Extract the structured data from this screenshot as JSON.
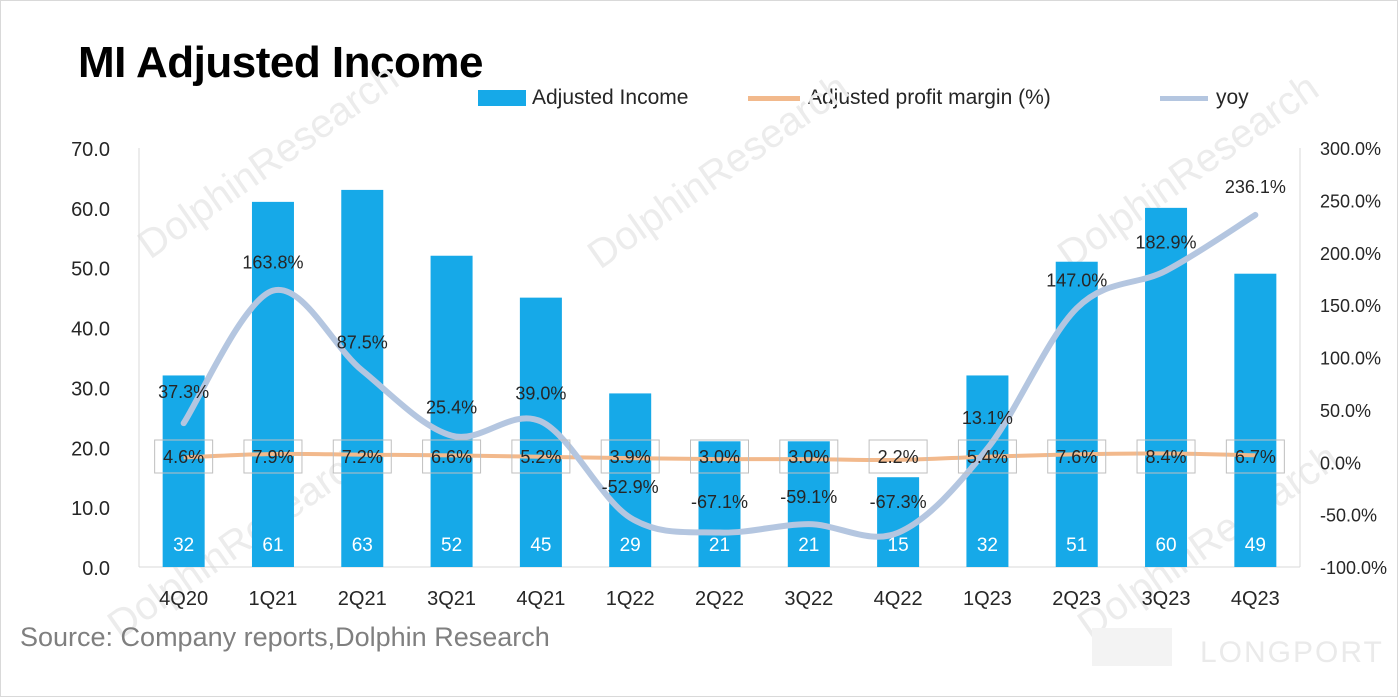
{
  "title": "MI Adjusted Income",
  "source": "Source: Company reports,Dolphin Research",
  "watermark": "LONGPORT",
  "chart_data": {
    "type": "bar",
    "categories": [
      "4Q20",
      "1Q21",
      "2Q21",
      "3Q21",
      "4Q21",
      "1Q22",
      "2Q22",
      "3Q22",
      "4Q22",
      "1Q23",
      "2Q23",
      "3Q23",
      "4Q23"
    ],
    "series": [
      {
        "name": "Adjusted Income",
        "type": "bar",
        "axis": "left",
        "color": "#16a9e8",
        "values": [
          32,
          61,
          63,
          52,
          45,
          29,
          21,
          21,
          15,
          32,
          51,
          60,
          49
        ],
        "labels": [
          "32",
          "61",
          "63",
          "52",
          "45",
          "29",
          "21",
          "21",
          "15",
          "32",
          "51",
          "60",
          "49"
        ]
      },
      {
        "name": "Adjusted  profit margin  (%)",
        "type": "line",
        "axis": "right",
        "color": "#f2b98c",
        "values": [
          4.6,
          7.9,
          7.2,
          6.6,
          5.2,
          3.9,
          3.0,
          3.0,
          2.2,
          5.4,
          7.6,
          8.4,
          6.7
        ],
        "labels": [
          "4.6%",
          "7.9%",
          "7.2%",
          "6.6%",
          "5.2%",
          "3.9%",
          "3.0%",
          "3.0%",
          "2.2%",
          "5.4%",
          "7.6%",
          "8.4%",
          "6.7%"
        ]
      },
      {
        "name": "yoy",
        "type": "line",
        "axis": "right",
        "color": "#b4c6e0",
        "values": [
          37.3,
          163.8,
          87.5,
          25.4,
          39.0,
          -52.9,
          -67.1,
          -59.1,
          -67.3,
          13.1,
          147.0,
          182.9,
          236.1
        ],
        "labels": [
          "37.3%",
          "163.8%",
          "87.5%",
          "25.4%",
          "39.0%",
          "-52.9%",
          "-67.1%",
          "-59.1%",
          "-67.3%",
          "13.1%",
          "147.0%",
          "182.9%",
          "236.1%"
        ]
      }
    ],
    "y_left": {
      "min": 0,
      "max": 70,
      "ticks": [
        "0.0",
        "10.0",
        "20.0",
        "30.0",
        "40.0",
        "50.0",
        "60.0",
        "70.0"
      ]
    },
    "y_right": {
      "min": -100,
      "max": 300,
      "ticks": [
        "-100.0%",
        "-50.0%",
        "0.0%",
        "50.0%",
        "100.0%",
        "150.0%",
        "200.0%",
        "250.0%",
        "300.0%"
      ]
    },
    "legend_position": "top",
    "grid": false
  }
}
